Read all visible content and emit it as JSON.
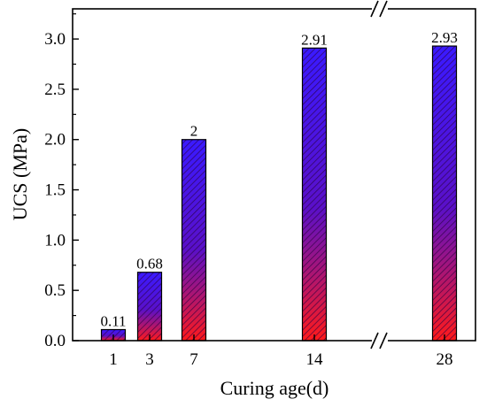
{
  "chart_data": {
    "type": "bar",
    "title": "",
    "xlabel": "Curing age(d)",
    "ylabel": "UCS (MPa)",
    "categories": [
      "1",
      "3",
      "7",
      "14",
      "28"
    ],
    "values": [
      0.11,
      0.68,
      2,
      2.91,
      2.93
    ],
    "data_labels": [
      "0.11",
      "0.68",
      "2",
      "2.91",
      "2.93"
    ],
    "ylim": [
      0,
      3.3
    ],
    "yticks": [
      "0.0",
      "0.5",
      "1.0",
      "1.5",
      "2.0",
      "2.5",
      "3.0"
    ],
    "x_axis_break": true,
    "grid": false,
    "legend": "none",
    "bar_gradient_top": "#3a1aff",
    "bar_gradient_bottom": "#ff1a1a",
    "bar_hatch_color": "#2a0040"
  }
}
